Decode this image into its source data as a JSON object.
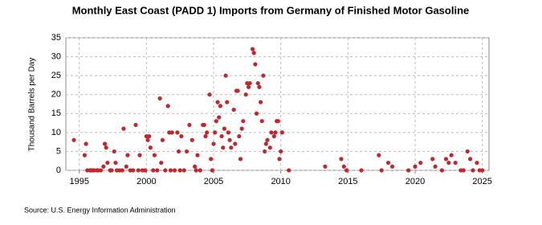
{
  "chart_data": {
    "type": "scatter",
    "title": "Monthly East Coast (PADD 1) Imports from Germany of Finished Motor Gasoline",
    "y_label": "Thousand Barrels per Day",
    "source": "Source: U.S. Energy Information Administration",
    "color": "#c0282d",
    "grid": true,
    "xlim": [
      1994,
      2025.5
    ],
    "ylim": [
      0,
      35
    ],
    "xticks": [
      1995,
      2000,
      2005,
      2010,
      2015,
      2020,
      2025
    ],
    "yticks": [
      0,
      5,
      10,
      15,
      20,
      25,
      30,
      35
    ],
    "x": [
      1994.6,
      1995.4,
      1995.5,
      1995.6,
      1995.8,
      1995.9,
      1996.0,
      1996.1,
      1996.3,
      1996.4,
      1996.6,
      1996.8,
      1996.9,
      1997.0,
      1997.1,
      1997.3,
      1997.4,
      1997.6,
      1997.7,
      1997.8,
      1998.0,
      1998.2,
      1998.3,
      1998.5,
      1998.6,
      1998.8,
      1999.0,
      1999.2,
      1999.4,
      1999.5,
      1999.7,
      1999.9,
      2000.0,
      2000.1,
      2000.2,
      2000.3,
      2000.5,
      2000.6,
      2000.8,
      2001.0,
      2001.1,
      2001.2,
      2001.4,
      2001.6,
      2001.7,
      2001.8,
      2001.9,
      2002.1,
      2002.3,
      2002.4,
      2002.5,
      2002.6,
      2002.8,
      2003.0,
      2003.2,
      2003.4,
      2003.6,
      2003.7,
      2003.8,
      2004.0,
      2004.2,
      2004.3,
      2004.4,
      2004.5,
      2004.7,
      2004.8,
      2004.9,
      2005.0,
      2005.1,
      2005.2,
      2005.3,
      2005.4,
      2005.5,
      2005.6,
      2005.7,
      2005.8,
      2005.9,
      2006.0,
      2006.1,
      2006.2,
      2006.3,
      2006.5,
      2006.6,
      2006.7,
      2006.8,
      2006.9,
      2007.0,
      2007.1,
      2007.2,
      2007.4,
      2007.5,
      2007.6,
      2007.7,
      2007.9,
      2008.0,
      2008.1,
      2008.2,
      2008.3,
      2008.4,
      2008.5,
      2008.6,
      2008.7,
      2008.8,
      2008.9,
      2009.0,
      2009.2,
      2009.3,
      2009.5,
      2009.6,
      2009.7,
      2009.8,
      2009.9,
      2010.0,
      2010.1,
      2010.6,
      2013.3,
      2014.5,
      2014.7,
      2014.9,
      2016.0,
      2017.3,
      2017.5,
      2018.0,
      2018.3,
      2019.5,
      2020.0,
      2020.4,
      2021.3,
      2021.5,
      2022.0,
      2022.3,
      2022.5,
      2022.7,
      2023.0,
      2023.4,
      2023.6,
      2023.9,
      2024.1,
      2024.3,
      2024.6,
      2024.8,
      2025.0
    ],
    "values": [
      8,
      4,
      7,
      0,
      0,
      0,
      0,
      0,
      0,
      0,
      0,
      1,
      7,
      6,
      2,
      0,
      0,
      5,
      2,
      0,
      0,
      0,
      11,
      1,
      4,
      0,
      0,
      12,
      0,
      4,
      0,
      0,
      9,
      8,
      9,
      6,
      0,
      4,
      0,
      19,
      2,
      8,
      0,
      17,
      10,
      0,
      10,
      0,
      10,
      5,
      0,
      9,
      0,
      5,
      12,
      8,
      1,
      0,
      4,
      0,
      12,
      12,
      9,
      10,
      20,
      3,
      0,
      7,
      10,
      13,
      18,
      14,
      17,
      9,
      6,
      11,
      25,
      18,
      10,
      8,
      6,
      16,
      7,
      21,
      21,
      9,
      3,
      11,
      13,
      20,
      23,
      22,
      23,
      32,
      31,
      28,
      15,
      23,
      22,
      18,
      13,
      25,
      5,
      7,
      8,
      6,
      10,
      9,
      10,
      13,
      13,
      3,
      5,
      10,
      0,
      1,
      3,
      1,
      0,
      0,
      4,
      0,
      2,
      1,
      0,
      1,
      2,
      3,
      1,
      0,
      3,
      2,
      4,
      2,
      0,
      0,
      5,
      3,
      0,
      2,
      0,
      0
    ]
  }
}
